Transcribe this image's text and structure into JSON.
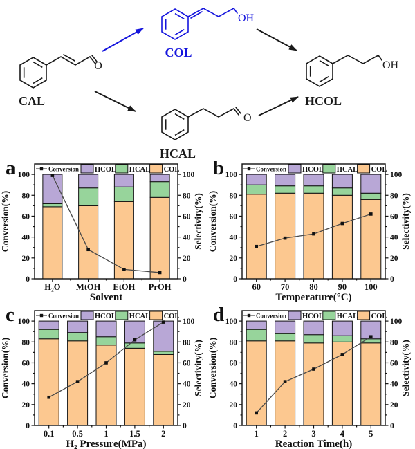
{
  "scheme": {
    "colors": {
      "ink": "#1a1a1a",
      "highlight": "#1515dd"
    },
    "cal": {
      "label": "CAL",
      "atom": "O"
    },
    "col": {
      "label": "COL",
      "atom": "OH"
    },
    "hcal": {
      "label": "HCAL",
      "atom": "O"
    },
    "hcol": {
      "label": "HCOL",
      "atom": "OH"
    }
  },
  "colors": {
    "COL": "#fcc890",
    "HCAL": "#97d49b",
    "HCOL": "#b8a7d6",
    "line": "#4a4a4a",
    "marker": "#111111",
    "axis": "#111111"
  },
  "chart_data": [
    {
      "panel": "a",
      "type": "bar+line",
      "xlabel": "Solvent",
      "ylabel_left": "Conversion(%)",
      "ylabel_right": "Selectivity(%)",
      "ylim": [
        0,
        110
      ],
      "yticks": [
        0,
        20,
        40,
        60,
        80,
        100
      ],
      "categories": [
        "H₂O",
        "MtOH",
        "EtOH",
        "PrOH"
      ],
      "conversion": [
        99,
        28,
        9,
        6
      ],
      "series": [
        {
          "name": "COL",
          "values": [
            69,
            70,
            74,
            78
          ]
        },
        {
          "name": "HCAL",
          "values": [
            3,
            17,
            14,
            15
          ]
        },
        {
          "name": "HCOL",
          "values": [
            28,
            13,
            12,
            7
          ]
        }
      ],
      "legend": [
        "Conversion",
        "HCOL",
        "HCAL",
        "COL"
      ],
      "legend_position": "top-inside",
      "grid": false
    },
    {
      "panel": "b",
      "type": "bar+line",
      "xlabel": "Temperature(°C)",
      "ylabel_left": "Conversion(%)",
      "ylabel_right": "Selectivity(%)",
      "ylim": [
        0,
        110
      ],
      "yticks": [
        0,
        20,
        40,
        60,
        80,
        100
      ],
      "categories": [
        "60",
        "70",
        "80",
        "90",
        "100"
      ],
      "conversion": [
        31,
        39,
        43,
        53,
        62
      ],
      "series": [
        {
          "name": "COL",
          "values": [
            81,
            82,
            82,
            80,
            76
          ]
        },
        {
          "name": "HCAL",
          "values": [
            9,
            7,
            7,
            7,
            6
          ]
        },
        {
          "name": "HCOL",
          "values": [
            10,
            11,
            11,
            13,
            18
          ]
        }
      ],
      "legend": [
        "Conversion",
        "HCOL",
        "HCAL",
        "COL"
      ],
      "legend_position": "top-inside",
      "grid": false
    },
    {
      "panel": "c",
      "type": "bar+line",
      "xlabel": "H₂ Pressure(MPa)",
      "ylabel_left": "Conversion(%)",
      "ylabel_right": "Selectivity(%)",
      "ylim": [
        0,
        110
      ],
      "yticks": [
        0,
        20,
        40,
        60,
        80,
        100
      ],
      "categories": [
        "0.1",
        "0.5",
        "1",
        "1.5",
        "2"
      ],
      "conversion": [
        27,
        42,
        60,
        82,
        99
      ],
      "series": [
        {
          "name": "COL",
          "values": [
            83,
            81,
            77,
            74,
            68
          ]
        },
        {
          "name": "HCAL",
          "values": [
            9,
            8,
            8,
            5,
            3
          ]
        },
        {
          "name": "HCOL",
          "values": [
            8,
            11,
            15,
            21,
            29
          ]
        }
      ],
      "legend": [
        "Conversion",
        "HCOL",
        "HCAL",
        "COL"
      ],
      "legend_position": "top-inside",
      "grid": false
    },
    {
      "panel": "d",
      "type": "bar+line",
      "xlabel": "Reaction Time(h)",
      "ylabel_left": "Conversion(%)",
      "ylabel_right": "Selectivity(%)",
      "ylim": [
        0,
        110
      ],
      "yticks": [
        0,
        20,
        40,
        60,
        80,
        100
      ],
      "categories": [
        "1",
        "2",
        "3",
        "4",
        "5"
      ],
      "conversion": [
        12,
        42,
        54,
        68,
        85
      ],
      "series": [
        {
          "name": "COL",
          "values": [
            81,
            81,
            79,
            80,
            79
          ]
        },
        {
          "name": "HCAL",
          "values": [
            11,
            7,
            8,
            6,
            4
          ]
        },
        {
          "name": "HCOL",
          "values": [
            8,
            12,
            13,
            14,
            17
          ]
        }
      ],
      "legend": [
        "Conversion",
        "HCOL",
        "HCAL",
        "COL"
      ],
      "legend_position": "top-inside",
      "grid": false
    }
  ]
}
